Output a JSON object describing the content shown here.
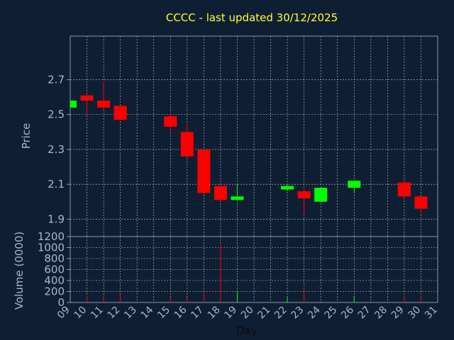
{
  "chart_data": {
    "type": "candlestick",
    "title": "CCCC - last updated 30/12/2025",
    "xlabel": "Day",
    "price": {
      "ylabel": "Price",
      "ylim": [
        1.8,
        2.95
      ],
      "yticks": [
        "1.9",
        "2.1",
        "2.3",
        "2.5",
        "2.7"
      ],
      "ytick_values": [
        1.9,
        2.1,
        2.3,
        2.5,
        2.7
      ]
    },
    "volume": {
      "ylabel": "Volume (0000)",
      "ylim": [
        0,
        1200
      ],
      "yticks": [
        "0",
        "200",
        "400",
        "600",
        "800",
        "1000",
        "1200"
      ],
      "ytick_values": [
        0,
        200,
        400,
        600,
        800,
        1000,
        1200
      ]
    },
    "x_ticks": [
      "09",
      "10",
      "11",
      "12",
      "13",
      "14",
      "15",
      "16",
      "17",
      "18",
      "19",
      "20",
      "21",
      "22",
      "23",
      "24",
      "25",
      "26",
      "27",
      "28",
      "29",
      "30",
      "31"
    ],
    "candles": [
      {
        "day": 9,
        "open": 2.54,
        "close": 2.58,
        "high": 2.58,
        "low": 2.54,
        "volume": 5
      },
      {
        "day": 10,
        "open": 2.61,
        "close": 2.58,
        "high": 2.62,
        "low": 2.5,
        "volume": 110
      },
      {
        "day": 11,
        "open": 2.58,
        "close": 2.54,
        "high": 2.69,
        "low": 2.53,
        "volume": 120
      },
      {
        "day": 12,
        "open": 2.55,
        "close": 2.47,
        "high": 2.55,
        "low": 2.47,
        "volume": 150
      },
      {
        "day": 15,
        "open": 2.49,
        "close": 2.43,
        "high": 2.51,
        "low": 2.4,
        "volume": 100
      },
      {
        "day": 16,
        "open": 2.4,
        "close": 2.26,
        "high": 2.45,
        "low": 2.25,
        "volume": 90
      },
      {
        "day": 17,
        "open": 2.3,
        "close": 2.05,
        "high": 2.3,
        "low": 2.04,
        "volume": 190
      },
      {
        "day": 18,
        "open": 2.09,
        "close": 2.01,
        "high": 2.09,
        "low": 2.01,
        "volume": 1060
      },
      {
        "day": 19,
        "open": 2.01,
        "close": 2.03,
        "high": 2.1,
        "low": 2.01,
        "volume": 190
      },
      {
        "day": 22,
        "open": 2.07,
        "close": 2.09,
        "high": 2.1,
        "low": 2.06,
        "volume": 110
      },
      {
        "day": 23,
        "open": 2.06,
        "close": 2.02,
        "high": 2.07,
        "low": 1.93,
        "volume": 200
      },
      {
        "day": 24,
        "open": 2.0,
        "close": 2.08,
        "high": 2.08,
        "low": 2.0,
        "volume": 15
      },
      {
        "day": 26,
        "open": 2.08,
        "close": 2.12,
        "high": 2.12,
        "low": 2.05,
        "volume": 120
      },
      {
        "day": 29,
        "open": 2.11,
        "close": 2.03,
        "high": 2.13,
        "low": 2.02,
        "volume": 110
      },
      {
        "day": 30,
        "open": 2.03,
        "close": 1.96,
        "high": 2.03,
        "low": 1.93,
        "volume": 110
      }
    ],
    "grid": true,
    "colors": {
      "background": "#0f1f33",
      "title": "#ffff33",
      "axis_text": "#a8b8cc",
      "up": "#00ff00",
      "down": "#ff0000",
      "grid": "#c8c8c8",
      "frame": "#8899aa"
    }
  }
}
